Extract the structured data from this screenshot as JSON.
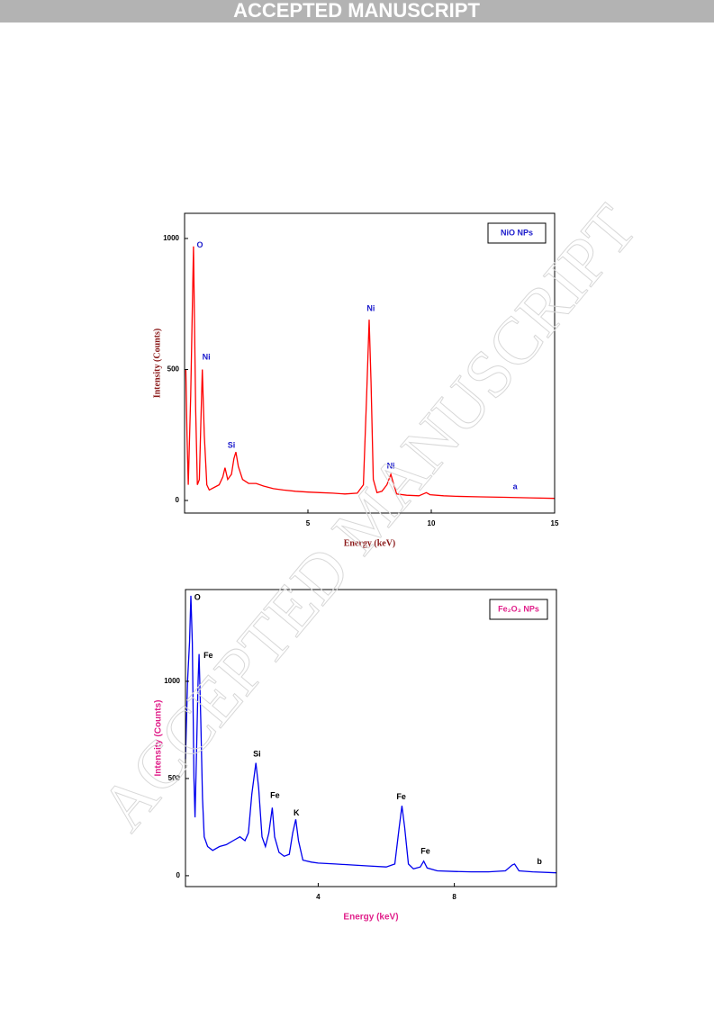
{
  "header": "ACCEPTED MANUSCRIPT",
  "watermark": "ACCEPTED MANUSCRIPT",
  "chart_data": [
    {
      "type": "line",
      "xlabel": "Energy (keV)",
      "ylabel": "Intensity (Counts)",
      "axis_label_color": "#8b1a1a",
      "axis_label_font": "serif",
      "xlim": [
        0,
        15
      ],
      "ylim": [
        -48,
        1096
      ],
      "xticks": [
        5,
        10,
        15
      ],
      "yticks": [
        0,
        500,
        1000
      ],
      "legend": "upper right",
      "legend_color": "#1a1acc",
      "series": [
        {
          "name": "NiO NPs",
          "color": "#ff0000",
          "x": [
            0.05,
            0.1,
            0.15,
            0.25,
            0.36,
            0.45,
            0.52,
            0.6,
            0.66,
            0.72,
            0.8,
            0.9,
            1.0,
            1.2,
            1.4,
            1.55,
            1.64,
            1.75,
            1.9,
            2.0,
            2.08,
            2.18,
            2.35,
            2.6,
            2.9,
            3.2,
            3.6,
            4,
            4.5,
            5,
            5.5,
            6,
            6.5,
            7.0,
            7.25,
            7.38,
            7.48,
            7.56,
            7.65,
            7.8,
            8.0,
            8.2,
            8.36,
            8.48,
            8.6,
            9,
            9.5,
            9.8,
            9.95,
            10.5,
            11,
            12,
            13,
            14,
            15
          ],
          "values": [
            500,
            250,
            60,
            400,
            970,
            350,
            60,
            80,
            300,
            500,
            250,
            60,
            40,
            50,
            60,
            90,
            125,
            80,
            100,
            160,
            185,
            130,
            80,
            65,
            65,
            55,
            45,
            40,
            35,
            32,
            30,
            28,
            25,
            28,
            60,
            400,
            690,
            450,
            80,
            30,
            35,
            60,
            100,
            60,
            25,
            20,
            18,
            30,
            22,
            18,
            16,
            14,
            12,
            10,
            8
          ]
        }
      ],
      "annotation_color": "#1a1acc",
      "annotations": [
        {
          "text": "O",
          "x": 0.62,
          "y": 973
        },
        {
          "text": "Ni",
          "x": 0.88,
          "y": 546
        },
        {
          "text": "Si",
          "x": 1.9,
          "y": 210
        },
        {
          "text": "Ni",
          "x": 7.55,
          "y": 732
        },
        {
          "text": "Ni",
          "x": 8.36,
          "y": 130
        },
        {
          "text": "a",
          "x": 13.4,
          "y": 52
        }
      ]
    },
    {
      "type": "line",
      "xlabel": "Energy (keV)",
      "ylabel": "Intensity (Counts)",
      "axis_label_color": "#e0208a",
      "axis_label_font": "sans-serif",
      "xlim": [
        0.1,
        11
      ],
      "ylim": [
        -56,
        1472
      ],
      "xticks": [
        4,
        8
      ],
      "yticks": [
        0,
        500,
        1000
      ],
      "legend": "upper right",
      "legend_color": "#e0208a",
      "series": [
        {
          "name": "Fe₂O₃ NPs",
          "color": "#0000ee",
          "x": [
            0.1,
            0.16,
            0.22,
            0.26,
            0.3,
            0.35,
            0.38,
            0.42,
            0.47,
            0.5,
            0.55,
            0.6,
            0.65,
            0.75,
            0.9,
            1.1,
            1.3,
            1.5,
            1.7,
            1.85,
            1.95,
            2.05,
            2.17,
            2.25,
            2.35,
            2.45,
            2.55,
            2.65,
            2.72,
            2.85,
            3.0,
            3.15,
            3.25,
            3.34,
            3.42,
            3.55,
            3.8,
            4,
            4.5,
            5,
            5.5,
            6,
            6.25,
            6.38,
            6.46,
            6.54,
            6.65,
            6.8,
            7.0,
            7.1,
            7.2,
            7.5,
            8,
            8.5,
            9,
            9.5,
            9.7,
            9.77,
            9.9,
            10.3,
            11
          ],
          "values": [
            600,
            1000,
            1200,
            1440,
            1200,
            500,
            300,
            600,
            1000,
            1140,
            800,
            400,
            200,
            150,
            130,
            150,
            160,
            180,
            200,
            180,
            220,
            420,
            580,
            450,
            200,
            150,
            220,
            350,
            200,
            120,
            100,
            110,
            220,
            290,
            180,
            80,
            70,
            65,
            60,
            55,
            50,
            45,
            60,
            250,
            360,
            250,
            60,
            35,
            45,
            75,
            40,
            25,
            22,
            20,
            20,
            25,
            55,
            60,
            25,
            20,
            15
          ]
        }
      ],
      "annotation_color": "#000000",
      "annotations": [
        {
          "text": "O",
          "x": 0.45,
          "y": 1430
        },
        {
          "text": "Fe",
          "x": 0.77,
          "y": 1130
        },
        {
          "text": "Si",
          "x": 2.2,
          "y": 625
        },
        {
          "text": "Fe",
          "x": 2.73,
          "y": 412
        },
        {
          "text": "K",
          "x": 3.36,
          "y": 320
        },
        {
          "text": "Fe",
          "x": 6.44,
          "y": 403
        },
        {
          "text": "Fe",
          "x": 7.15,
          "y": 125
        },
        {
          "text": "b",
          "x": 10.5,
          "y": 70
        }
      ]
    }
  ]
}
